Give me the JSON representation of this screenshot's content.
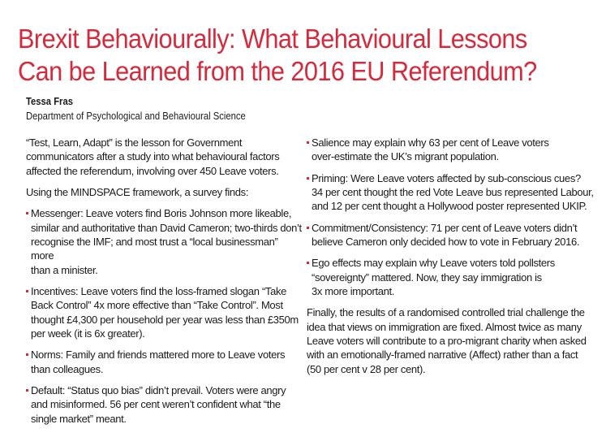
{
  "header": {
    "title_lines": [
      "Brexit Behaviourally: What Behavioural Lessons",
      "Can be Learned from the 2016 EU Referendum?"
    ],
    "author": "Tessa Fras",
    "department": "Department of Psychological and Behavioural Science"
  },
  "accent_color": "#d62a3c",
  "left_column": {
    "intro": "“Test, Learn, Adapt” is the lesson for Government\ncommunicators after a study into what behavioural factors\naffected the referendum, involving over 450 Leave voters.",
    "lead": "Using the MINDSPACE framework, a survey finds:",
    "bullets": [
      "Messenger: Leave voters find Boris Johnson more likeable,\nsimilar and authoritative than David Cameron; two-thirds don’t\nrecognise the IMF; and most trust a “local businessman” more\nthan a minister.",
      "Incentives: Leave voters find the loss-framed slogan “Take\nBack Control” 4x more effective than “Take Control”. Most\nthought £4,300 per household per year was less than £350m\nper week (it is 6x greater).",
      "Norms: Family and friends mattered more to Leave voters\nthan colleagues.",
      "Default: “Status quo bias” didn’t prevail. Voters were angry\nand misinformed. 56 per cent weren’t confident what “the\nsingle market” meant."
    ]
  },
  "right_column": {
    "bullets": [
      "Salience may explain why 63 per cent of Leave voters\nover-estimate the UK’s migrant population.",
      "Priming: Were Leave voters affected by sub-conscious cues?\n34 per cent thought the red Vote Leave bus represented Labour,\nand 12 per cent thought a Hollywood poster represented UKIP.",
      "Commitment/Consistency: 71 per cent of Leave voters didn’t\nbelieve Cameron only decided how to vote in February 2016.",
      "Ego effects may explain why Leave voters told pollsters\n“sovereignty” mattered. Now, they say immigration is\n3x more important."
    ],
    "conclusion": "Finally, the results of a randomised controlled trial challenge the\nidea that views on immigration are fixed. Almost twice as many\nLeave voters will contribute to a pro-migrant charity when asked\nwith an emotionally-framed narrative (Affect) rather than a fact\n(50 per cent v 28 per cent)."
  }
}
